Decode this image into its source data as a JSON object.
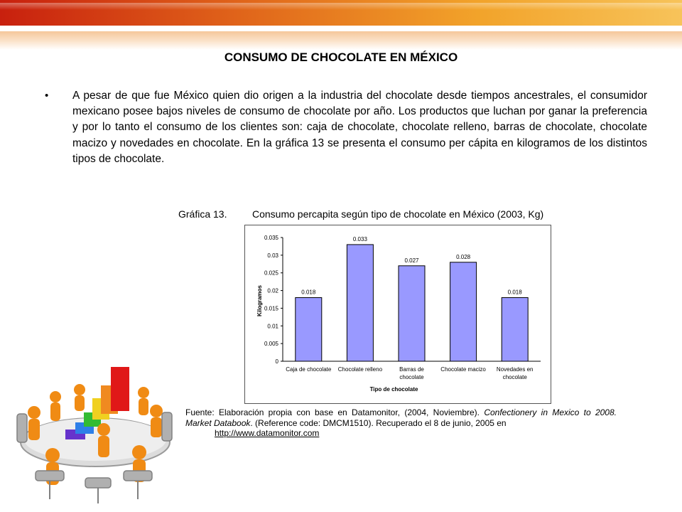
{
  "slide": {
    "title": "CONSUMO DE CHOCOLATE EN MÉXICO",
    "bullet_symbol": "•",
    "paragraph": "A pesar de que fue México quien dio origen a la industria del chocolate desde tiempos ancestrales, el consumidor mexicano posee bajos niveles de consumo de chocolate por año. Los productos que luchan por  ganar la preferencia y por lo tanto el consumo de los clientes son: caja de chocolate, chocolate relleno, barras de chocolate, chocolate macizo y novedades en chocolate. En la gráfica 13 se presenta el consumo per cápita en kilogramos de los distintos tipos de chocolate."
  },
  "figure": {
    "caption_label": "Gráfica  13.",
    "caption_text": "Consumo percapita según tipo de chocolate en México (2003, Kg)",
    "source_prefix": "Fuente: Elaboración propia con base en Datamonitor, (2004, Noviembre).",
    "source_title": "Confectionery in Mexico to 2008. Market Databook",
    "source_rest": ". (Reference code: DMCM1510). Recuperado el 8 de junio, 2005 en",
    "source_url": "http://www.datamonitor.com"
  },
  "chart_data": {
    "type": "bar",
    "categories": [
      "Caja de chocolate",
      "Chocolate relleno",
      "Barras de chocolate",
      "Chocolate macizo",
      "Novedades en chocolate"
    ],
    "category_lines": [
      [
        "Caja de chocolate"
      ],
      [
        "Chocolate relleno"
      ],
      [
        "Barras de",
        "chocolate"
      ],
      [
        "Chocolate macizo"
      ],
      [
        "Novedades en",
        "chocolate"
      ]
    ],
    "values": [
      0.018,
      0.033,
      0.027,
      0.028,
      0.018
    ],
    "data_labels": [
      "0.018",
      "0.033",
      "0.027",
      "0.028",
      "0.018"
    ],
    "yticks": [
      "0",
      "0.005",
      "0.01",
      "0.015",
      "0.02",
      "0.025",
      "0.03",
      "0.035"
    ],
    "ylim": [
      0,
      0.035
    ],
    "xlabel": "Tipo de chocolate",
    "ylabel": "Kilogramos",
    "grid": false,
    "bar_color": "#9999ff"
  },
  "decor": {
    "clipart_icon": "business-team-meeting-bar-chart"
  }
}
